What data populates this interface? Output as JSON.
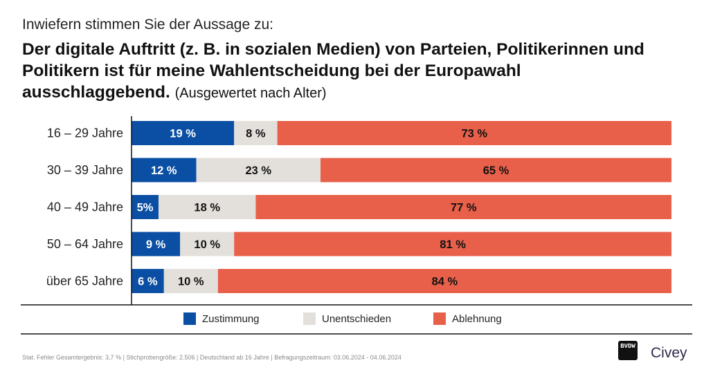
{
  "header": {
    "pretitle": "Inwiefern stimmen Sie der Aussage zu:",
    "title": "Der digitale Auftritt (z. B. in sozialen Medien) von Parteien, Politikerinnen und Politikern ist für meine Wahlentscheidung bei der Europawahl ausschlaggebend.",
    "subtitle": "(Ausgewertet nach Alter)"
  },
  "chart_data": {
    "type": "bar",
    "orientation": "horizontal",
    "stacked": true,
    "categories": [
      "16 – 29 Jahre",
      "30 – 39 Jahre",
      "40 – 49 Jahre",
      "50 – 64 Jahre",
      "über 65 Jahre"
    ],
    "series": [
      {
        "name": "Zustimmung",
        "color": "#0a4fa3",
        "label_color": "#ffffff",
        "values": [
          19,
          12,
          5,
          9,
          6
        ],
        "labels": [
          "19 %",
          "12 %",
          "5%",
          "9 %",
          "6 %"
        ]
      },
      {
        "name": "Unentschieden",
        "color": "#e3e0dc",
        "label_color": "#111111",
        "values": [
          8,
          23,
          18,
          10,
          10
        ],
        "labels": [
          "8 %",
          "23 %",
          "18 %",
          "10 %",
          "10 %"
        ]
      },
      {
        "name": "Ablehnung",
        "color": "#e8604a",
        "label_color": "#111111",
        "values": [
          73,
          65,
          77,
          81,
          84
        ],
        "labels": [
          "73 %",
          "65 %",
          "77 %",
          "81 %",
          "84 %"
        ]
      }
    ],
    "xlim": [
      0,
      100
    ],
    "grid": false,
    "legend_position": "bottom"
  },
  "legend": {
    "items": [
      {
        "label": "Zustimmung",
        "color": "#0a4fa3"
      },
      {
        "label": "Unentschieden",
        "color": "#e3e0dc"
      },
      {
        "label": "Ablehnung",
        "color": "#e8604a"
      }
    ]
  },
  "footer": {
    "note": "Stat. Fehler Gesamtergebnis: 3,7 % | Stichprobengröße: 2.506 | Deutschland ab 16 Jahre | Befragungszeitraum: 03.06.2024 - 04.06.2024",
    "logo_mark": "BVDW",
    "logo_text": "Civey"
  }
}
